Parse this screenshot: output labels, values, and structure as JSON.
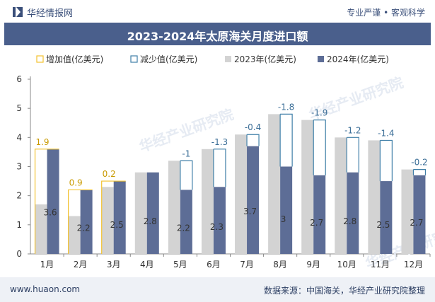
{
  "header": {
    "brand": "华经情报网",
    "slogan": "专业严谨 • 客观科学"
  },
  "title": "2023-2024年太原海关月度进口额",
  "legend": {
    "increase": "增加值(亿美元)",
    "decrease": "减少值(亿美元)",
    "y2023": "2023年(亿美元)",
    "y2024": "2024年(亿美元)"
  },
  "footer": {
    "website": "www.huaon.com",
    "source": "数据来源：中国海关，华经产业研究院整理"
  },
  "watermark": "华经产业研究院",
  "colors": {
    "title_bg": "#4a5f8c",
    "bar_2023": "#d3d3d3",
    "bar_2024": "#5d6d96",
    "increase": "#f2c230",
    "decrease": "#3f7fa8",
    "label_increase": "#c99a00",
    "label_decrease": "#3b6e97"
  },
  "chart_data": {
    "type": "bar",
    "categories": [
      "1月",
      "2月",
      "3月",
      "4月",
      "5月",
      "6月",
      "7月",
      "8月",
      "9月",
      "10月",
      "11月",
      "12月"
    ],
    "series": [
      {
        "name": "2023年(亿美元)",
        "values": [
          1.7,
          1.3,
          2.3,
          2.8,
          3.2,
          3.6,
          4.1,
          4.8,
          4.6,
          4.0,
          3.9,
          2.9
        ]
      },
      {
        "name": "2024年(亿美元)",
        "values": [
          3.6,
          2.2,
          2.5,
          2.8,
          2.2,
          2.3,
          3.7,
          3.0,
          2.7,
          2.8,
          2.5,
          2.7
        ]
      }
    ],
    "change_labels": [
      "1.9",
      "0.9",
      "0.2",
      "",
      "-1",
      "-1.3",
      "-0.4",
      "-1.8",
      "-1.9",
      "-1.2",
      "-1.4",
      "-0.2"
    ],
    "y2024_labels": [
      "3.6",
      "2.2",
      "2.5",
      "2.8",
      "2.2",
      "2.3",
      "3.7",
      "3",
      "2.7",
      "2.8",
      "2.5",
      "2.7"
    ],
    "yticks": [
      "0",
      "1",
      "2",
      "3",
      "4",
      "5",
      "6"
    ],
    "ylim": [
      0,
      6
    ],
    "grid": false,
    "legend_position": "top"
  }
}
